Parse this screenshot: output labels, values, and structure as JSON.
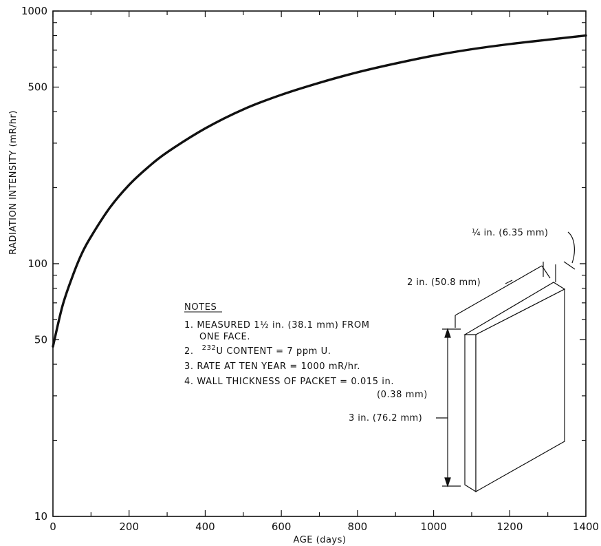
{
  "chart_data": {
    "type": "line",
    "xlabel": "AGE (days)",
    "ylabel": "RADIATION INTENSITY (mR/hr)",
    "xlim": [
      0,
      1400
    ],
    "ylim": [
      10,
      1000
    ],
    "y_scale": "log",
    "x_ticks": [
      0,
      200,
      400,
      600,
      800,
      1000,
      1200,
      1400
    ],
    "x_tick_labels": [
      "0",
      "200",
      "400",
      "600",
      "800",
      "1000",
      "1200",
      "1400"
    ],
    "y_tick_labels": [
      {
        "value": 10,
        "label": "10"
      },
      {
        "value": 50,
        "label": "50"
      },
      {
        "value": 100,
        "label": "100"
      },
      {
        "value": 500,
        "label": "500"
      },
      {
        "value": 1000,
        "label": "1000"
      }
    ],
    "series": [
      {
        "x": [
          0,
          25,
          50,
          75,
          100,
          150,
          200,
          250,
          300,
          400,
          500,
          600,
          700,
          800,
          900,
          1000,
          1100,
          1200,
          1300,
          1400
        ],
        "y": [
          47,
          68,
          88,
          109,
          128,
          167,
          205,
          241,
          276,
          343,
          408,
          466,
          520,
          572,
          620,
          666,
          706,
          740,
          770,
          800
        ]
      }
    ]
  },
  "notes": {
    "heading": "NOTES",
    "item1_line1": "1.  MEASURED 1½ in. (38.1 mm) FROM",
    "item1_line2": "ONE FACE.",
    "item2_prefix": "2.",
    "item2_superscript": "232",
    "item2_text": "U CONTENT = 7 ppm U.",
    "item3": "3.  RATE AT TEN YEAR = 1000 mR/hr.",
    "item4_line1": "4.  WALL THICKNESS OF PACKET = 0.015 in.",
    "item4_line2": "(0.38 mm)"
  },
  "packet_diagram": {
    "thickness_label": "¼ in. (6.35 mm)",
    "width_label": "2 in. (50.8 mm)",
    "height_label": "3 in. (76.2 mm)"
  }
}
